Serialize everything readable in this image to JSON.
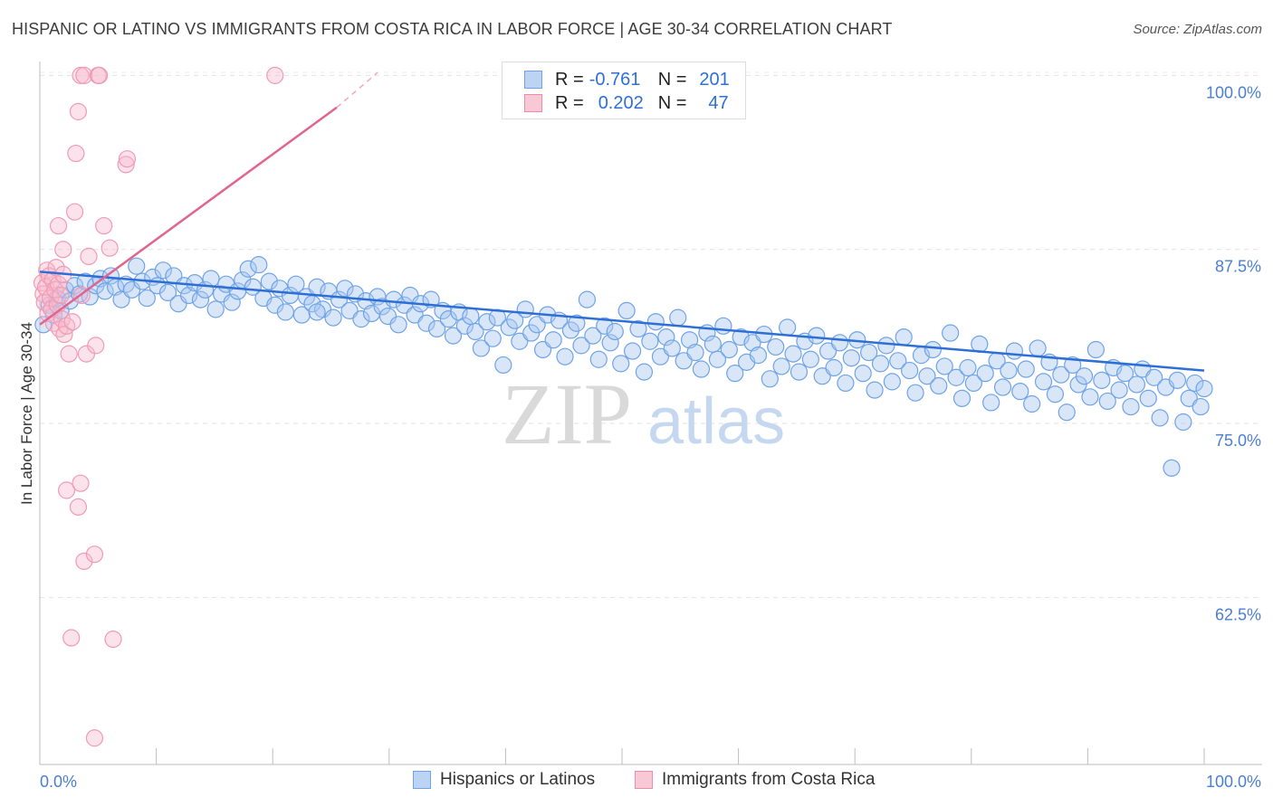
{
  "header": {
    "title": "HISPANIC OR LATINO VS IMMIGRANTS FROM COSTA RICA IN LABOR FORCE | AGE 30-34 CORRELATION CHART",
    "source": "Source: ZipAtlas.com"
  },
  "watermark": {
    "zip": "ZIP",
    "atlas": "atlas"
  },
  "legend": {
    "r_label": "R =",
    "n_label": "N =",
    "series": [
      {
        "r": "-0.761",
        "n": "201",
        "color": "#6fa3e8"
      },
      {
        "r": "0.202",
        "n": "47",
        "color": "#f08aa8"
      }
    ]
  },
  "chart_data": {
    "type": "scatter",
    "title": "HISPANIC OR LATINO VS IMMIGRANTS FROM COSTA RICA IN LABOR FORCE | AGE 30-34 CORRELATION CHART",
    "ylabel": "In Labor Force | Age 30-34",
    "xlabel": "",
    "xlim": [
      0,
      100
    ],
    "ylim": [
      50.5,
      101
    ],
    "x_tick_labels": [
      "0.0%",
      "100.0%"
    ],
    "y_ticks": [
      62.5,
      75.0,
      87.5,
      100.0
    ],
    "y_tick_labels": [
      "62.5%",
      "75.0%",
      "87.5%",
      "100.0%"
    ],
    "grid": true,
    "series": [
      {
        "name": "Hispanics or Latinos",
        "color": "#6fa3e8",
        "trend": {
          "x": [
            0,
            100
          ],
          "y": [
            85.9,
            78.8
          ]
        },
        "points": [
          [
            0.3,
            82.1
          ],
          [
            0.8,
            83.5
          ],
          [
            1.2,
            82.8
          ],
          [
            1.5,
            84.0
          ],
          [
            1.8,
            83.1
          ],
          [
            2.2,
            84.6
          ],
          [
            2.6,
            83.8
          ],
          [
            3.0,
            84.9
          ],
          [
            3.4,
            84.3
          ],
          [
            3.9,
            85.2
          ],
          [
            4.3,
            84.1
          ],
          [
            4.8,
            84.9
          ],
          [
            5.2,
            85.4
          ],
          [
            5.6,
            84.5
          ],
          [
            6.1,
            85.6
          ],
          [
            6.5,
            84.8
          ],
          [
            7.0,
            83.9
          ],
          [
            7.4,
            85.0
          ],
          [
            7.9,
            84.6
          ],
          [
            8.3,
            86.3
          ],
          [
            8.8,
            85.2
          ],
          [
            9.2,
            84.0
          ],
          [
            9.7,
            85.5
          ],
          [
            10.1,
            84.9
          ],
          [
            10.6,
            86.0
          ],
          [
            11.0,
            84.4
          ],
          [
            11.5,
            85.6
          ],
          [
            11.9,
            83.6
          ],
          [
            12.4,
            84.9
          ],
          [
            12.8,
            84.2
          ],
          [
            13.3,
            85.1
          ],
          [
            13.8,
            83.9
          ],
          [
            14.2,
            84.6
          ],
          [
            14.7,
            85.4
          ],
          [
            15.1,
            83.2
          ],
          [
            15.6,
            84.3
          ],
          [
            16.0,
            85.0
          ],
          [
            16.5,
            83.7
          ],
          [
            17.0,
            84.5
          ],
          [
            17.4,
            85.3
          ],
          [
            17.9,
            86.1
          ],
          [
            18.3,
            84.8
          ],
          [
            18.8,
            86.4
          ],
          [
            19.2,
            84.0
          ],
          [
            19.7,
            85.2
          ],
          [
            20.2,
            83.5
          ],
          [
            20.6,
            84.7
          ],
          [
            21.1,
            83.0
          ],
          [
            21.5,
            84.2
          ],
          [
            22.0,
            85.0
          ],
          [
            22.5,
            82.8
          ],
          [
            22.9,
            84.1
          ],
          [
            23.4,
            83.6
          ],
          [
            23.8,
            84.8
          ],
          [
            24.3,
            83.2
          ],
          [
            24.8,
            84.5
          ],
          [
            25.2,
            82.6
          ],
          [
            25.7,
            83.9
          ],
          [
            26.2,
            84.7
          ],
          [
            26.6,
            83.1
          ],
          [
            27.1,
            84.3
          ],
          [
            27.6,
            82.5
          ],
          [
            28.0,
            83.8
          ],
          [
            28.5,
            82.9
          ],
          [
            29.0,
            84.1
          ],
          [
            29.4,
            83.4
          ],
          [
            29.9,
            82.7
          ],
          [
            30.4,
            83.9
          ],
          [
            30.8,
            82.1
          ],
          [
            31.3,
            83.5
          ],
          [
            31.8,
            84.2
          ],
          [
            32.2,
            82.8
          ],
          [
            32.7,
            83.6
          ],
          [
            33.2,
            82.2
          ],
          [
            33.6,
            83.9
          ],
          [
            34.1,
            81.8
          ],
          [
            34.6,
            83.1
          ],
          [
            35.1,
            82.5
          ],
          [
            35.5,
            81.3
          ],
          [
            36.0,
            83.0
          ],
          [
            36.5,
            82.0
          ],
          [
            37.0,
            82.7
          ],
          [
            37.4,
            81.6
          ],
          [
            37.9,
            80.4
          ],
          [
            38.4,
            82.3
          ],
          [
            38.9,
            81.1
          ],
          [
            39.3,
            82.6
          ],
          [
            39.8,
            79.2
          ],
          [
            40.3,
            81.9
          ],
          [
            40.8,
            82.4
          ],
          [
            41.2,
            80.9
          ],
          [
            41.7,
            83.2
          ],
          [
            42.2,
            81.5
          ],
          [
            42.7,
            82.1
          ],
          [
            43.2,
            80.3
          ],
          [
            43.6,
            82.8
          ],
          [
            44.1,
            81.0
          ],
          [
            44.6,
            82.4
          ],
          [
            45.1,
            79.8
          ],
          [
            45.6,
            81.7
          ],
          [
            46.1,
            82.2
          ],
          [
            46.5,
            80.6
          ],
          [
            47.0,
            83.9
          ],
          [
            47.5,
            81.3
          ],
          [
            48.0,
            79.6
          ],
          [
            48.5,
            82.0
          ],
          [
            49.0,
            80.8
          ],
          [
            49.4,
            81.6
          ],
          [
            49.9,
            79.3
          ],
          [
            50.4,
            83.1
          ],
          [
            50.9,
            80.2
          ],
          [
            51.4,
            81.8
          ],
          [
            51.9,
            78.7
          ],
          [
            52.4,
            80.9
          ],
          [
            52.9,
            82.3
          ],
          [
            53.3,
            79.8
          ],
          [
            53.8,
            81.2
          ],
          [
            54.3,
            80.4
          ],
          [
            54.8,
            82.6
          ],
          [
            55.3,
            79.5
          ],
          [
            55.8,
            81.0
          ],
          [
            56.3,
            80.1
          ],
          [
            56.8,
            78.9
          ],
          [
            57.3,
            81.5
          ],
          [
            57.8,
            80.7
          ],
          [
            58.2,
            79.6
          ],
          [
            58.7,
            82.0
          ],
          [
            59.2,
            80.3
          ],
          [
            59.7,
            78.6
          ],
          [
            60.2,
            81.2
          ],
          [
            60.7,
            79.4
          ],
          [
            61.2,
            80.8
          ],
          [
            61.7,
            79.9
          ],
          [
            62.2,
            81.4
          ],
          [
            62.7,
            78.2
          ],
          [
            63.2,
            80.5
          ],
          [
            63.7,
            79.1
          ],
          [
            64.2,
            81.9
          ],
          [
            64.7,
            80.0
          ],
          [
            65.2,
            78.7
          ],
          [
            65.7,
            80.9
          ],
          [
            66.2,
            79.6
          ],
          [
            66.7,
            81.3
          ],
          [
            67.2,
            78.4
          ],
          [
            67.7,
            80.2
          ],
          [
            68.2,
            79.0
          ],
          [
            68.7,
            80.8
          ],
          [
            69.2,
            77.9
          ],
          [
            69.7,
            79.7
          ],
          [
            70.2,
            81.0
          ],
          [
            70.7,
            78.6
          ],
          [
            71.2,
            80.1
          ],
          [
            71.7,
            77.4
          ],
          [
            72.2,
            79.3
          ],
          [
            72.7,
            80.6
          ],
          [
            73.2,
            78.0
          ],
          [
            73.7,
            79.5
          ],
          [
            74.2,
            81.2
          ],
          [
            74.7,
            78.8
          ],
          [
            75.2,
            77.2
          ],
          [
            75.7,
            79.9
          ],
          [
            76.2,
            78.4
          ],
          [
            76.7,
            80.3
          ],
          [
            77.2,
            77.7
          ],
          [
            77.7,
            79.1
          ],
          [
            78.2,
            81.5
          ],
          [
            78.7,
            78.3
          ],
          [
            79.2,
            76.8
          ],
          [
            79.7,
            79.0
          ],
          [
            80.2,
            77.9
          ],
          [
            80.7,
            80.7
          ],
          [
            81.2,
            78.6
          ],
          [
            81.7,
            76.5
          ],
          [
            82.2,
            79.5
          ],
          [
            82.7,
            77.6
          ],
          [
            83.2,
            78.8
          ],
          [
            83.7,
            80.2
          ],
          [
            84.2,
            77.3
          ],
          [
            84.7,
            78.9
          ],
          [
            85.2,
            76.4
          ],
          [
            85.7,
            80.4
          ],
          [
            86.2,
            78.0
          ],
          [
            86.7,
            79.4
          ],
          [
            87.2,
            77.1
          ],
          [
            87.7,
            78.5
          ],
          [
            88.2,
            75.8
          ],
          [
            88.7,
            79.2
          ],
          [
            89.2,
            77.8
          ],
          [
            89.7,
            78.4
          ],
          [
            90.2,
            76.9
          ],
          [
            90.7,
            80.3
          ],
          [
            91.2,
            78.1
          ],
          [
            91.7,
            76.6
          ],
          [
            92.2,
            79.0
          ],
          [
            92.7,
            77.4
          ],
          [
            93.2,
            78.6
          ],
          [
            93.7,
            76.2
          ],
          [
            94.2,
            77.8
          ],
          [
            94.7,
            78.9
          ],
          [
            95.2,
            76.8
          ],
          [
            95.7,
            78.3
          ],
          [
            96.2,
            75.4
          ],
          [
            96.7,
            77.6
          ],
          [
            97.2,
            71.8
          ],
          [
            97.7,
            78.1
          ],
          [
            98.2,
            75.1
          ],
          [
            98.7,
            76.8
          ],
          [
            99.2,
            77.9
          ],
          [
            99.7,
            76.2
          ],
          [
            100.0,
            77.5
          ],
          [
            23.8,
            83.0
          ]
        ]
      },
      {
        "name": "Immigrants from Costa Rica",
        "color": "#f08aa8",
        "trend": {
          "x": [
            0,
            25.5
          ],
          "y": [
            82.1,
            97.7
          ]
        },
        "trend_dashed": {
          "x": [
            25.5,
            29.0
          ],
          "y": [
            97.7,
            100.2
          ]
        },
        "points": [
          [
            0.2,
            85.1
          ],
          [
            0.3,
            84.3
          ],
          [
            0.4,
            83.7
          ],
          [
            0.5,
            84.8
          ],
          [
            0.6,
            86.0
          ],
          [
            0.7,
            82.9
          ],
          [
            0.8,
            85.6
          ],
          [
            0.9,
            84.0
          ],
          [
            1.0,
            83.2
          ],
          [
            1.1,
            85.3
          ],
          [
            1.2,
            82.2
          ],
          [
            1.3,
            84.6
          ],
          [
            1.4,
            86.2
          ],
          [
            1.5,
            83.5
          ],
          [
            1.6,
            85.0
          ],
          [
            1.7,
            81.8
          ],
          [
            1.8,
            84.2
          ],
          [
            1.9,
            82.5
          ],
          [
            2.0,
            85.7
          ],
          [
            2.1,
            81.4
          ],
          [
            1.6,
            89.2
          ],
          [
            2.0,
            87.5
          ],
          [
            2.3,
            82.0
          ],
          [
            2.5,
            80.0
          ],
          [
            2.8,
            82.3
          ],
          [
            3.0,
            90.2
          ],
          [
            3.1,
            94.4
          ],
          [
            3.3,
            97.4
          ],
          [
            3.5,
            100.0
          ],
          [
            3.6,
            84.2
          ],
          [
            3.8,
            100.0
          ],
          [
            4.0,
            80.0
          ],
          [
            4.2,
            87.0
          ],
          [
            5.0,
            100.0
          ],
          [
            5.1,
            100.0
          ],
          [
            5.5,
            89.2
          ],
          [
            6.0,
            87.6
          ],
          [
            4.8,
            80.6
          ],
          [
            7.4,
            93.6
          ],
          [
            7.5,
            94.0
          ],
          [
            20.2,
            100.0
          ],
          [
            2.3,
            70.2
          ],
          [
            3.3,
            69.0
          ],
          [
            3.5,
            70.7
          ],
          [
            3.8,
            65.1
          ],
          [
            4.7,
            65.6
          ],
          [
            2.7,
            59.6
          ],
          [
            6.3,
            59.5
          ],
          [
            4.7,
            52.4
          ]
        ]
      }
    ]
  },
  "bottom_legend": [
    {
      "label": "Hispanics or Latinos",
      "color": "#6fa3e8"
    },
    {
      "label": "Immigrants from Costa Rica",
      "color": "#f08aa8"
    }
  ]
}
